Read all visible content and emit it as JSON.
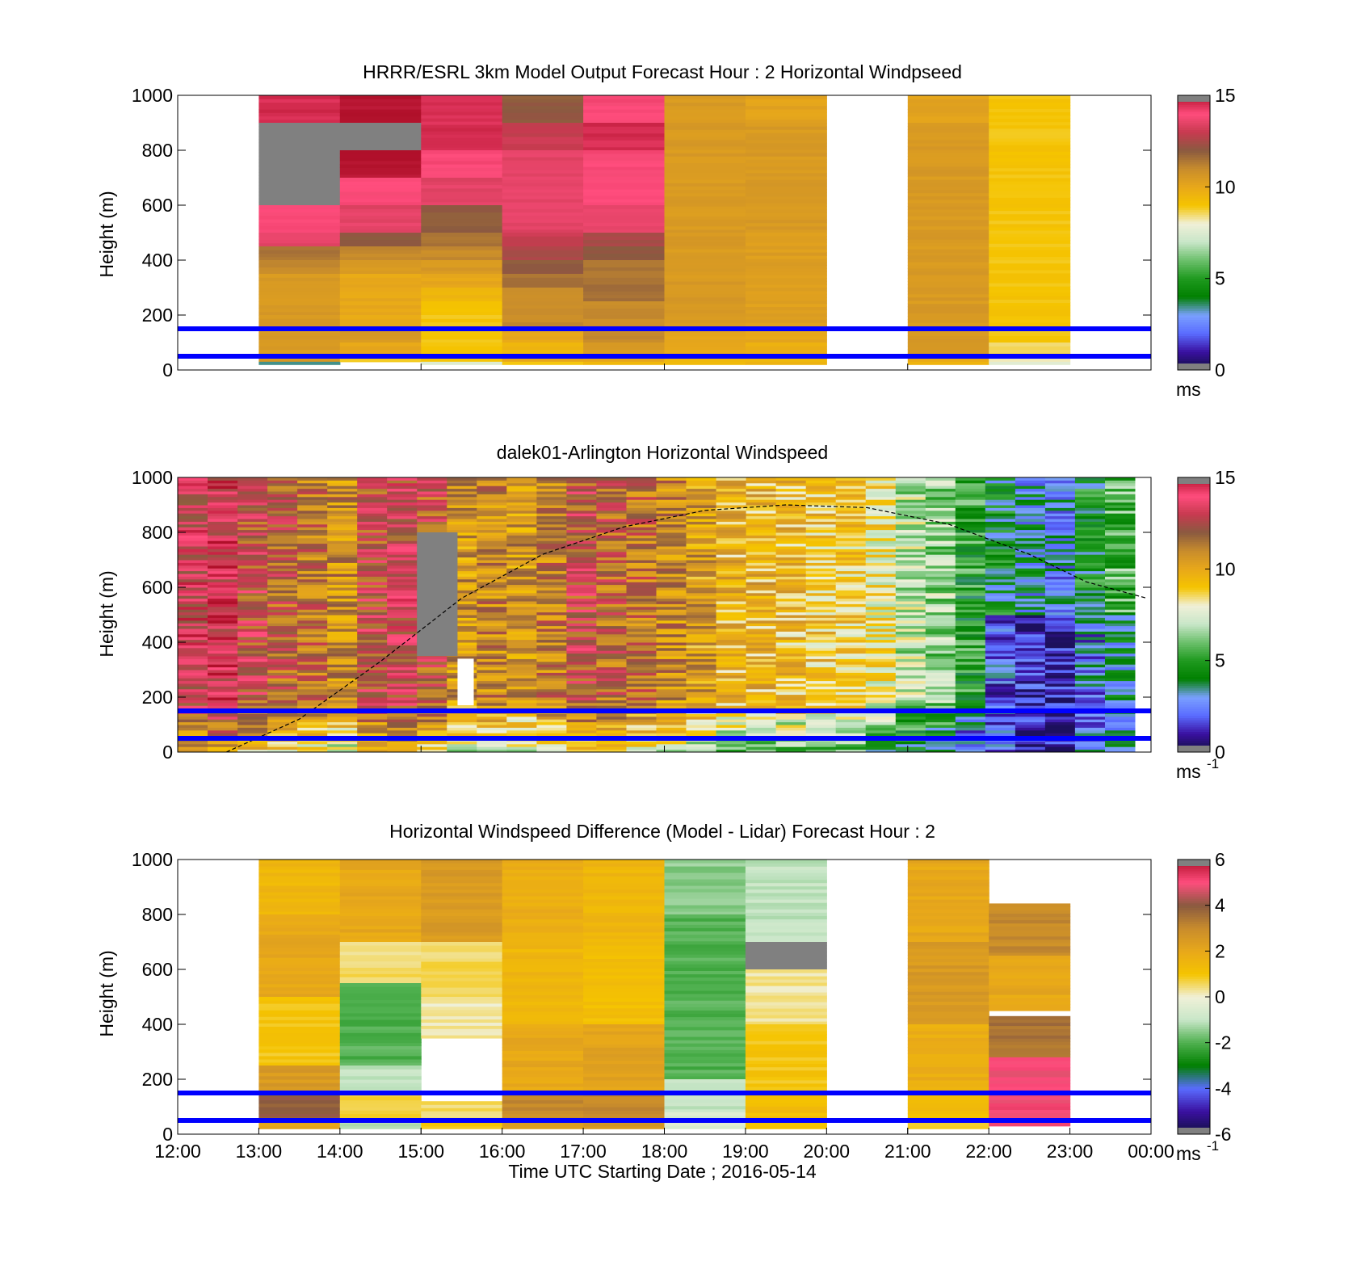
{
  "figure": {
    "xlabel": "Time UTC  Starting Date ; 2016-05-14",
    "x_ticks": [
      "12:00",
      "13:00",
      "14:00",
      "15:00",
      "16:00",
      "17:00",
      "18:00",
      "19:00",
      "20:00",
      "21:00",
      "22:00",
      "23:00",
      "00:00"
    ],
    "colors": {
      "overlay_lines": "#0000ff",
      "speed_colormap": [
        "#101040",
        "#3a10a0",
        "#5a6cff",
        "#7aa0ff",
        "#008000",
        "#1f9a1f",
        "#6cc06c",
        "#c8e6c8",
        "#f0f0d8",
        "#f5c400",
        "#e8a81a",
        "#c88c2c",
        "#8a5a40",
        "#c83a50",
        "#ff4d7d",
        "#b0102a"
      ],
      "diff_colormap": [
        "#101040",
        "#3a10a0",
        "#5a6cff",
        "#008000",
        "#4fb04f",
        "#c8e6c8",
        "#f0f0d8",
        "#f5c400",
        "#e8a81a",
        "#c88c2c",
        "#8a5a40",
        "#ff4d7d",
        "#b0102a"
      ],
      "missing": "#808080"
    }
  },
  "chart_data": [
    {
      "type": "heatmap",
      "title": "HRRR/ESRL 3km Model Output   Forecast Hour : 2 Horizontal Windpseed",
      "ylabel": "Height (m)",
      "ylim": [
        0,
        1000
      ],
      "y_ticks": [
        "0",
        "200",
        "400",
        "600",
        "800",
        "1000"
      ],
      "colorbar": {
        "ticks": [
          "0",
          "5",
          "10",
          "15"
        ],
        "range": [
          0,
          15
        ],
        "unit": "ms",
        "unit_sup": ""
      },
      "overlay_heights_m": [
        50,
        150
      ],
      "x_hours": [
        "13:00",
        "14:00",
        "15:00",
        "16:00",
        "17:00",
        "18:00",
        "19:00",
        "21:00",
        "22:00"
      ],
      "columns": [
        {
          "start": "13:00",
          "end": "14:00",
          "bottom_m": 20,
          "layers": [
            [
              900,
              1000,
              14.5
            ],
            [
              600,
              900,
              "missing"
            ],
            [
              500,
              600,
              14
            ],
            [
              450,
              500,
              13.5
            ],
            [
              400,
              450,
              11.5
            ],
            [
              350,
              400,
              11
            ],
            [
              300,
              350,
              10.5
            ],
            [
              250,
              300,
              10.5
            ],
            [
              200,
              250,
              10.5
            ],
            [
              150,
              200,
              10.5
            ],
            [
              100,
              150,
              10.5
            ],
            [
              50,
              100,
              10.5
            ],
            [
              30,
              50,
              10.5
            ],
            [
              20,
              30,
              3.5
            ]
          ]
        },
        {
          "start": "14:00",
          "end": "15:00",
          "bottom_m": 30,
          "layers": [
            [
              900,
              1000,
              15
            ],
            [
              800,
              900,
              "missing"
            ],
            [
              700,
              800,
              15
            ],
            [
              600,
              700,
              14
            ],
            [
              500,
              600,
              13.5
            ],
            [
              450,
              500,
              12
            ],
            [
              400,
              450,
              11
            ],
            [
              350,
              400,
              10.5
            ],
            [
              300,
              350,
              10
            ],
            [
              250,
              300,
              10
            ],
            [
              200,
              250,
              10
            ],
            [
              150,
              200,
              10
            ],
            [
              100,
              150,
              10.5
            ],
            [
              50,
              100,
              10
            ],
            [
              30,
              50,
              9
            ]
          ]
        },
        {
          "start": "15:00",
          "end": "16:00",
          "bottom_m": 20,
          "layers": [
            [
              800,
              1000,
              14.5
            ],
            [
              700,
              800,
              14
            ],
            [
              600,
              700,
              13.5
            ],
            [
              500,
              600,
              12
            ],
            [
              450,
              500,
              11.5
            ],
            [
              400,
              450,
              11
            ],
            [
              350,
              400,
              10.5
            ],
            [
              300,
              350,
              10
            ],
            [
              250,
              300,
              9.5
            ],
            [
              200,
              250,
              9
            ],
            [
              150,
              200,
              9
            ],
            [
              100,
              150,
              9
            ],
            [
              50,
              100,
              9
            ],
            [
              30,
              50,
              9
            ],
            [
              20,
              30,
              7.5
            ]
          ]
        },
        {
          "start": "16:00",
          "end": "17:00",
          "bottom_m": 20,
          "layers": [
            [
              900,
              1000,
              12
            ],
            [
              800,
              900,
              13
            ],
            [
              600,
              800,
              13.5
            ],
            [
              500,
              600,
              13.5
            ],
            [
              450,
              500,
              13
            ],
            [
              400,
              450,
              12.5
            ],
            [
              350,
              400,
              12
            ],
            [
              300,
              350,
              11.5
            ],
            [
              250,
              300,
              11
            ],
            [
              200,
              250,
              11
            ],
            [
              150,
              200,
              11
            ],
            [
              100,
              150,
              10
            ],
            [
              50,
              100,
              9.5
            ],
            [
              30,
              50,
              10
            ],
            [
              20,
              30,
              9
            ]
          ]
        },
        {
          "start": "17:00",
          "end": "18:00",
          "bottom_m": 20,
          "layers": [
            [
              900,
              1000,
              14
            ],
            [
              800,
              900,
              14.5
            ],
            [
              600,
              800,
              14
            ],
            [
              500,
              600,
              13.5
            ],
            [
              450,
              500,
              12.5
            ],
            [
              400,
              450,
              12
            ],
            [
              350,
              400,
              11.5
            ],
            [
              300,
              350,
              11.5
            ],
            [
              250,
              300,
              11.5
            ],
            [
              200,
              250,
              11
            ],
            [
              150,
              200,
              11
            ],
            [
              100,
              150,
              11
            ],
            [
              50,
              100,
              10.5
            ],
            [
              30,
              50,
              10
            ],
            [
              20,
              30,
              9.5
            ]
          ]
        },
        {
          "start": "18:00",
          "end": "19:00",
          "bottom_m": 20,
          "layers": [
            [
              900,
              1000,
              10.5
            ],
            [
              500,
              900,
              10.5
            ],
            [
              300,
              500,
              10.5
            ],
            [
              150,
              300,
              10.5
            ],
            [
              100,
              150,
              10
            ],
            [
              50,
              100,
              10
            ],
            [
              30,
              50,
              9.5
            ],
            [
              20,
              30,
              9.5
            ]
          ]
        },
        {
          "start": "19:00",
          "end": "20:00",
          "bottom_m": 20,
          "layers": [
            [
              900,
              1000,
              10.2
            ],
            [
              500,
              900,
              10.5
            ],
            [
              300,
              500,
              10.4
            ],
            [
              150,
              300,
              10.3
            ],
            [
              100,
              150,
              10
            ],
            [
              50,
              100,
              9.8
            ],
            [
              30,
              50,
              9.5
            ],
            [
              20,
              30,
              9.5
            ]
          ]
        },
        {
          "start": "21:00",
          "end": "22:00",
          "bottom_m": 20,
          "layers": [
            [
              900,
              1000,
              10.2
            ],
            [
              500,
              900,
              10.5
            ],
            [
              300,
              500,
              10.5
            ],
            [
              150,
              300,
              10.5
            ],
            [
              100,
              150,
              10.5
            ],
            [
              50,
              100,
              10.5
            ],
            [
              30,
              50,
              10
            ],
            [
              20,
              30,
              9.5
            ]
          ]
        },
        {
          "start": "22:00",
          "end": "23:00",
          "bottom_m": 20,
          "layers": [
            [
              150,
              1000,
              9
            ],
            [
              100,
              150,
              9
            ],
            [
              50,
              100,
              8.5
            ],
            [
              30,
              50,
              8
            ],
            [
              20,
              30,
              7.5
            ]
          ]
        }
      ]
    },
    {
      "type": "heatmap",
      "title": "dalek01-Arlington  Horizontal Windspeed",
      "ylabel": "Height (m)",
      "ylim": [
        0,
        1000
      ],
      "y_ticks": [
        "0",
        "200",
        "400",
        "600",
        "800",
        "1000"
      ],
      "colorbar": {
        "ticks": [
          "0",
          "5",
          "10",
          "15"
        ],
        "range": [
          0,
          15
        ],
        "unit": "ms",
        "unit_sup": "-1"
      },
      "overlay_heights_m": [
        50,
        150
      ],
      "boundary_layer_curve": [
        [
          12.6,
          0
        ],
        [
          13.5,
          120
        ],
        [
          14.5,
          330
        ],
        [
          15.5,
          560
        ],
        [
          16.5,
          720
        ],
        [
          17.5,
          820
        ],
        [
          18.5,
          880
        ],
        [
          19.5,
          900
        ],
        [
          20.5,
          890
        ],
        [
          21.5,
          830
        ],
        [
          22.5,
          720
        ],
        [
          23.2,
          620
        ],
        [
          23.95,
          560
        ]
      ],
      "profile_columns_hourly_mean_ms": [
        13.5,
        13.8,
        12.5,
        12.0,
        11.5,
        10.8,
        12.5,
        13.0,
        12.2,
        10.5,
        11.0,
        10.5,
        11.2,
        12.5,
        11.8,
        11.5,
        10.8,
        10.2,
        9.5,
        9.5,
        9.2,
        9.0,
        8.8,
        8.2,
        7.0,
        6.5,
        5.0,
        4.0,
        3.2,
        3.0,
        4.5,
        5.5
      ],
      "missing_blocks": [
        {
          "start_h": 14.95,
          "end_h": 15.45,
          "from_m": 350,
          "to_m": 800
        }
      ],
      "blank_blocks": [
        {
          "start_h": 15.45,
          "end_h": 15.65,
          "from_m": 170,
          "to_m": 340
        }
      ]
    },
    {
      "type": "heatmap",
      "title": "Horizontal Windspeed Difference (Model - Lidar) Forecast Hour : 2",
      "ylabel": "Height (m)",
      "ylim": [
        0,
        1000
      ],
      "y_ticks": [
        "0",
        "200",
        "400",
        "600",
        "800",
        "1000"
      ],
      "colorbar": {
        "ticks": [
          "-6",
          "-4",
          "-2",
          "0",
          "2",
          "4",
          "6"
        ],
        "range": [
          -6,
          6
        ],
        "unit": "ms",
        "unit_sup": "-1"
      },
      "overlay_heights_m": [
        50,
        150
      ],
      "columns": [
        {
          "start": "13:00",
          "end": "14:00",
          "bottom_m": 20,
          "layers": [
            [
              800,
              1000,
              1.5
            ],
            [
              500,
              800,
              2
            ],
            [
              250,
              500,
              1
            ],
            [
              150,
              250,
              2.5
            ],
            [
              50,
              150,
              4
            ],
            [
              20,
              50,
              2
            ]
          ]
        },
        {
          "start": "14:00",
          "end": "15:00",
          "bottom_m": 20,
          "layers": [
            [
              700,
              1000,
              2
            ],
            [
              550,
              700,
              0.5
            ],
            [
              250,
              550,
              -2
            ],
            [
              150,
              250,
              -1
            ],
            [
              50,
              150,
              0.8
            ],
            [
              20,
              50,
              -1
            ]
          ]
        },
        {
          "start": "15:00",
          "end": "16:00",
          "bottom_m": 20,
          "layers": [
            [
              700,
              1000,
              2.5
            ],
            [
              500,
              700,
              0.6
            ],
            [
              350,
              500,
              0.2
            ],
            [
              120,
              350,
              "blank"
            ],
            [
              50,
              120,
              0.5
            ],
            [
              20,
              50,
              1
            ]
          ]
        },
        {
          "start": "16:00",
          "end": "17:00",
          "bottom_m": 20,
          "layers": [
            [
              700,
              1000,
              1.8
            ],
            [
              400,
              700,
              1.5
            ],
            [
              150,
              400,
              2
            ],
            [
              50,
              150,
              3
            ],
            [
              20,
              50,
              2.5
            ]
          ]
        },
        {
          "start": "17:00",
          "end": "18:00",
          "bottom_m": 20,
          "layers": [
            [
              700,
              1000,
              1.5
            ],
            [
              400,
              700,
              1.2
            ],
            [
              150,
              400,
              2.2
            ],
            [
              50,
              150,
              3
            ],
            [
              20,
              50,
              2.5
            ]
          ]
        },
        {
          "start": "18:00",
          "end": "19:00",
          "bottom_m": 20,
          "layers": [
            [
              800,
              1000,
              -1.5
            ],
            [
              200,
              800,
              -2
            ],
            [
              80,
              200,
              -1
            ],
            [
              20,
              80,
              -0.5
            ]
          ]
        },
        {
          "start": "19:00",
          "end": "20:00",
          "bottom_m": 20,
          "layers": [
            [
              700,
              1000,
              -1
            ],
            [
              600,
              700,
              "missing"
            ],
            [
              400,
              600,
              0.3
            ],
            [
              150,
              400,
              1
            ],
            [
              20,
              150,
              1.2
            ]
          ]
        },
        {
          "start": "21:00",
          "end": "22:00",
          "bottom_m": 20,
          "layers": [
            [
              700,
              1000,
              2
            ],
            [
              400,
              700,
              2.5
            ],
            [
              150,
              400,
              1.8
            ],
            [
              50,
              150,
              1.2
            ],
            [
              20,
              50,
              0.6
            ]
          ]
        },
        {
          "start": "22:00",
          "end": "23:00",
          "bottom_m": 30,
          "layers": [
            [
              650,
              840,
              3
            ],
            [
              450,
              650,
              2
            ],
            [
              440,
              450,
              "blank"
            ],
            [
              280,
              430,
              3.5
            ],
            [
              150,
              280,
              5
            ],
            [
              30,
              150,
              5
            ]
          ]
        }
      ]
    }
  ]
}
